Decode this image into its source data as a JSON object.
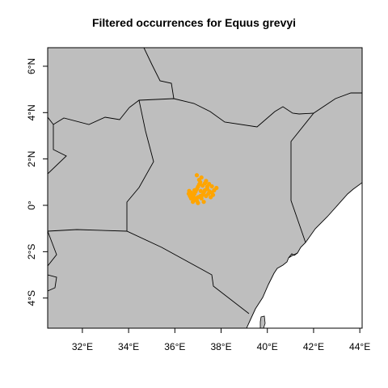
{
  "title": "Filtered occurrences for Equus grevyi",
  "colors": {
    "land": "#bebebe",
    "sea": "#ffffff",
    "border": "#000000",
    "points": "#ffa500"
  },
  "chart_data": {
    "type": "scatter",
    "title": "Filtered occurrences for Equus grevyi",
    "xlabel": "",
    "ylabel": "",
    "xlim": [
      30.5,
      44.1
    ],
    "ylim": [
      -5.3,
      6.8
    ],
    "x_ticks": [
      32,
      34,
      36,
      38,
      40,
      42,
      44
    ],
    "x_tick_labels": [
      "32°E",
      "34°E",
      "36°E",
      "38°E",
      "40°E",
      "42°E",
      "44°E"
    ],
    "y_ticks": [
      -4,
      -2,
      0,
      2,
      4,
      6
    ],
    "y_tick_labels": [
      "4°S",
      "2°S",
      "0°",
      "2°N",
      "4°N",
      "6°N"
    ],
    "grid": false,
    "series": [
      {
        "color": "#ffa500",
        "points": [
          [
            36.62,
            0.62
          ],
          [
            36.7,
            0.55
          ],
          [
            36.75,
            0.45
          ],
          [
            36.8,
            0.38
          ],
          [
            36.85,
            0.5
          ],
          [
            36.9,
            0.6
          ],
          [
            36.95,
            0.7
          ],
          [
            37.0,
            0.8
          ],
          [
            37.05,
            0.9
          ],
          [
            37.1,
            1.0
          ],
          [
            36.82,
            0.25
          ],
          [
            36.9,
            0.3
          ],
          [
            37.0,
            0.35
          ],
          [
            37.1,
            0.4
          ],
          [
            37.2,
            0.45
          ],
          [
            37.25,
            0.55
          ],
          [
            37.3,
            0.65
          ],
          [
            37.4,
            0.7
          ],
          [
            37.5,
            0.6
          ],
          [
            37.6,
            0.55
          ],
          [
            37.7,
            0.65
          ],
          [
            37.8,
            0.75
          ],
          [
            37.45,
            0.5
          ],
          [
            37.35,
            0.4
          ],
          [
            37.15,
            0.3
          ],
          [
            36.95,
            0.2
          ],
          [
            36.7,
            0.3
          ],
          [
            36.65,
            0.4
          ],
          [
            37.2,
            0.85
          ],
          [
            37.3,
            0.95
          ],
          [
            37.4,
            0.8
          ],
          [
            37.05,
            1.1
          ],
          [
            37.15,
            1.2
          ],
          [
            36.95,
            1.3
          ],
          [
            37.55,
            0.35
          ],
          [
            37.65,
            0.45
          ],
          [
            37.25,
            0.15
          ],
          [
            37.0,
            0.1
          ],
          [
            36.85,
            0.65
          ],
          [
            37.35,
            1.05
          ],
          [
            36.78,
            0.15
          ],
          [
            37.12,
            0.62
          ],
          [
            37.48,
            0.92
          ],
          [
            36.6,
            0.5
          ],
          [
            37.6,
            0.82
          ]
        ]
      }
    ]
  }
}
